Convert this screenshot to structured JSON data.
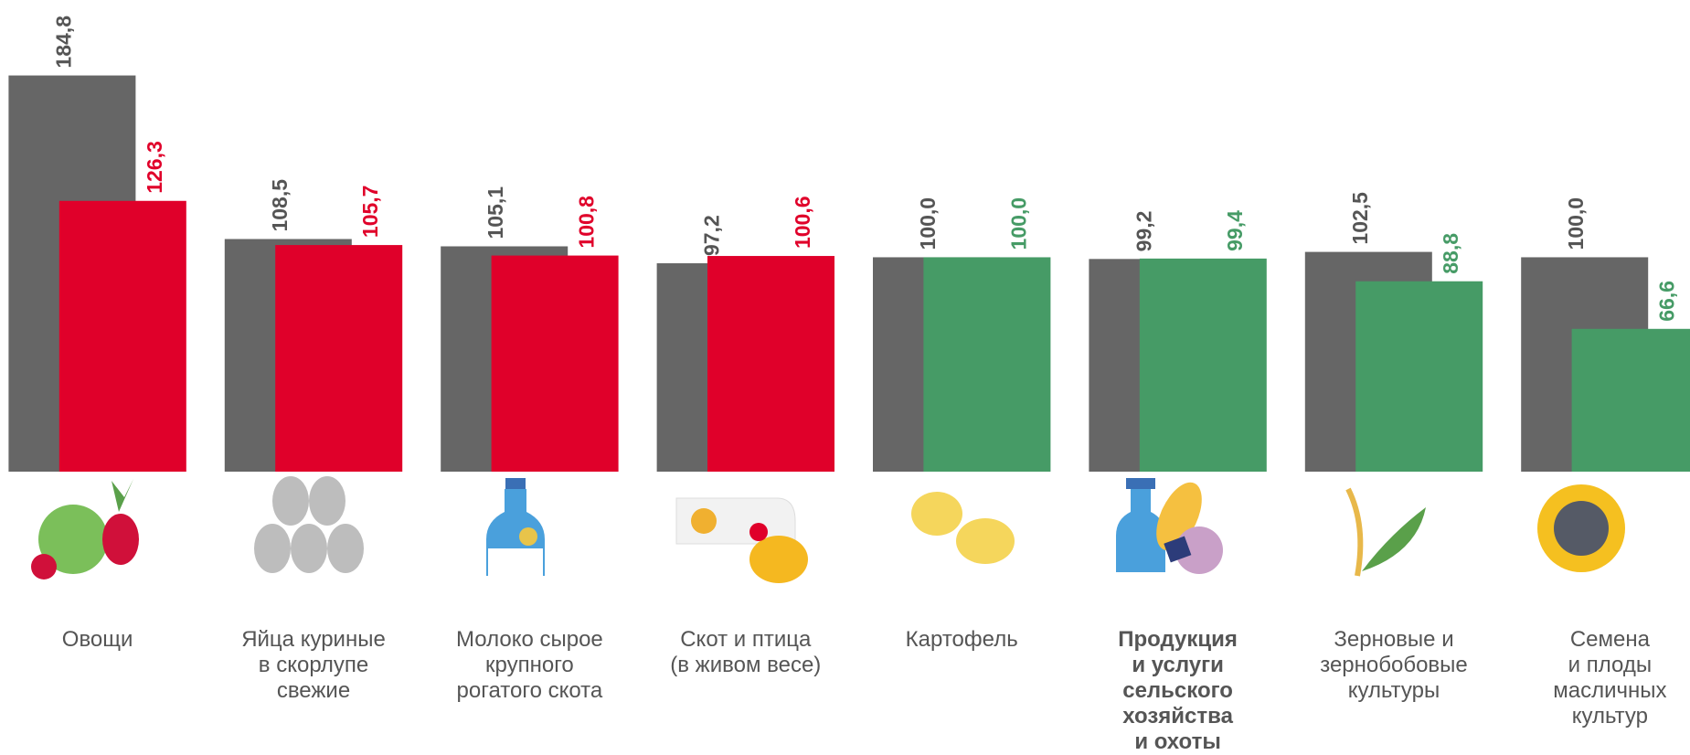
{
  "chart_data": {
    "type": "bar",
    "categories": [
      "Овощи",
      "Яйца куриные\nв скорлупе\nсвежие",
      "Молоко сырое\nкрупного\nрогатого скота",
      "Скот и птица\n(в живом весе)",
      "Картофель",
      "Продукция\nи услуги\nсельского\nхозяйства\nи охоты",
      "Зерновые и\nзернобобовые\nкультуры",
      "Семена\nи плоды\nмасличных\nкультур"
    ],
    "series": [
      {
        "color": "#666666",
        "values": [
          184.8,
          108.5,
          105.1,
          97.2,
          100.0,
          99.2,
          102.5,
          100.0
        ],
        "value_labels": [
          "184,8",
          "108,5",
          "105,1",
          "97,2",
          "100,0",
          "99,2",
          "102,5",
          "100,0"
        ]
      },
      {
        "colors": [
          "#e0002a",
          "#e0002a",
          "#e0002a",
          "#e0002a",
          "#469b66",
          "#469b66",
          "#469b66",
          "#469b66"
        ],
        "values": [
          126.3,
          105.7,
          100.8,
          100.6,
          100.0,
          99.4,
          88.8,
          66.6
        ],
        "value_labels": [
          "126,3",
          "105,7",
          "100,8",
          "100,6",
          "100,0",
          "99,4",
          "88,8",
          "66,6"
        ]
      }
    ],
    "ylim": [
      0,
      220
    ]
  }
}
